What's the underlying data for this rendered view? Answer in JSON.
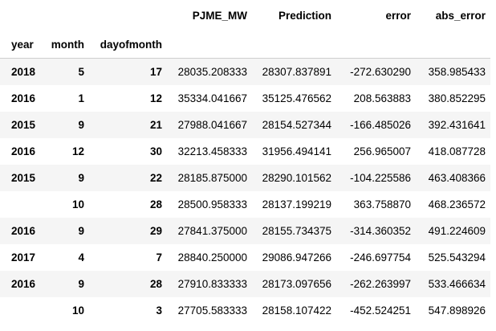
{
  "table": {
    "columns": [
      "PJME_MW",
      "Prediction",
      "error",
      "abs_error"
    ],
    "index_names": [
      "year",
      "month",
      "dayofmonth"
    ],
    "rows": [
      {
        "year": "2018",
        "month": "5",
        "day": "17",
        "values": [
          "28035.208333",
          "28307.837891",
          "-272.630290",
          "358.985433"
        ]
      },
      {
        "year": "2016",
        "month": "1",
        "day": "12",
        "values": [
          "35334.041667",
          "35125.476562",
          "208.563883",
          "380.852295"
        ]
      },
      {
        "year": "2015",
        "month": "9",
        "day": "21",
        "values": [
          "27988.041667",
          "28154.527344",
          "-166.485026",
          "392.431641"
        ]
      },
      {
        "year": "2016",
        "month": "12",
        "day": "30",
        "values": [
          "32213.458333",
          "31956.494141",
          "256.965007",
          "418.087728"
        ]
      },
      {
        "year": "2015",
        "month": "9",
        "day": "22",
        "values": [
          "28185.875000",
          "28290.101562",
          "-104.225586",
          "463.408366"
        ]
      },
      {
        "year": "",
        "month": "10",
        "day": "28",
        "values": [
          "28500.958333",
          "28137.199219",
          "363.758870",
          "468.236572"
        ]
      },
      {
        "year": "2016",
        "month": "9",
        "day": "29",
        "values": [
          "27841.375000",
          "28155.734375",
          "-314.360352",
          "491.224609"
        ]
      },
      {
        "year": "2017",
        "month": "4",
        "day": "7",
        "values": [
          "28840.250000",
          "29086.947266",
          "-246.697754",
          "525.543294"
        ]
      },
      {
        "year": "2016",
        "month": "9",
        "day": "28",
        "values": [
          "27910.833333",
          "28173.097656",
          "-262.263997",
          "533.466634"
        ]
      },
      {
        "year": "",
        "month": "10",
        "day": "3",
        "values": [
          "27705.583333",
          "28158.107422",
          "-452.524251",
          "547.898926"
        ]
      }
    ]
  }
}
